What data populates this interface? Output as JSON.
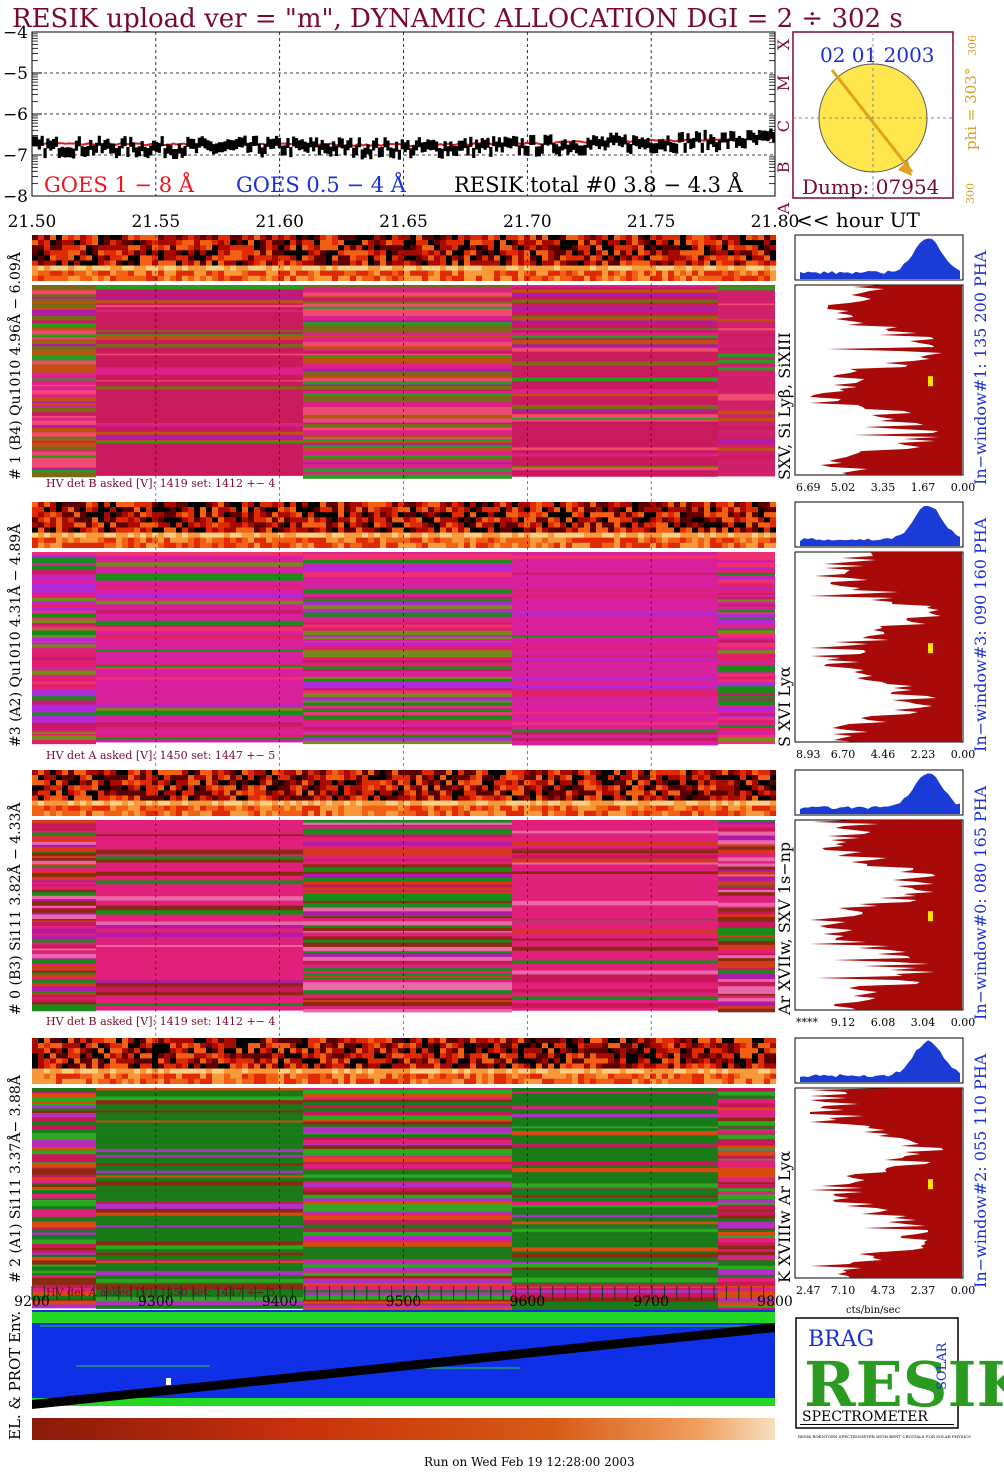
{
  "title": "RESIK upload ver = \"m\", DYNAMIC ALLOCATION  DGI =   2 ÷ 302 s",
  "colors": {
    "title": "#7a0a2a",
    "goes_long": "#e8141e",
    "goes_short": "#1a2fd6",
    "resik_total": "#000000",
    "spectrum": "#a80a0a",
    "profile": "#1a3bd6",
    "marker": "#ffe000",
    "sun": "#ffe64d",
    "sun_label": "#1a2fd6",
    "phi": "#d6a020",
    "env_bg": "#1030e8",
    "env_band": "#22d822",
    "window_label": "#1a2fd6",
    "hv_label": "#7a0a2a"
  },
  "top_panel": {
    "y_ticks": [
      "−4",
      "−5",
      "−6",
      "−7",
      "−8"
    ],
    "x_ticks": [
      "21.50",
      "21.55",
      "21.60",
      "21.65",
      "21.70",
      "21.75",
      "21.80"
    ],
    "x_unit": "<< hour UT",
    "goes_classes": [
      "X",
      "M",
      "C",
      "B",
      "A"
    ],
    "legend": {
      "goes_long": "GOES 1 − 8 Å",
      "goes_short": "GOES 0.5 − 4 Å",
      "resik_total": "RESIK total #0  3.8 − 4.3 Å"
    }
  },
  "chart_data": {
    "type": "line",
    "title": "RESIK upload ver = \"m\", DYNAMIC ALLOCATION  DGI =   2 ÷ 302 s",
    "xlabel": "hour UT",
    "xlim": [
      21.5,
      21.8
    ],
    "ylim": [
      -8,
      -4
    ],
    "series": [
      {
        "name": "GOES 1 − 8 Å",
        "x": [
          21.5,
          21.55,
          21.6,
          21.65,
          21.7,
          21.75,
          21.8
        ],
        "y": [
          -6.72,
          -6.75,
          -6.73,
          -6.76,
          -6.72,
          -6.66,
          -6.6
        ]
      },
      {
        "name": "RESIK total #0  3.8 − 4.3 Å",
        "x": [
          21.5,
          21.55,
          21.6,
          21.65,
          21.7,
          21.75,
          21.8
        ],
        "y": [
          -6.8,
          -6.82,
          -6.8,
          -6.84,
          -6.78,
          -6.7,
          -6.62
        ]
      }
    ]
  },
  "sun_box": {
    "date": "02 01 2003",
    "dump": "Dump: 07954",
    "phi": "phi = 303°",
    "phi_top": "306",
    "phi_bottom": "300"
  },
  "channels": [
    {
      "id": "ch1",
      "label": "# 1 (B4) Qu1010 4.96Å − 6.09Å",
      "lines": "SXV, Si Lyβ, SiXIII",
      "hv": "HV det B asked [V]:  1419 set:  1412 +−    4",
      "window": "In−window#1:  135 200 PHA",
      "ticks": [
        "6.69",
        "5.02",
        "3.35",
        "1.67",
        "0.00"
      ]
    },
    {
      "id": "ch3",
      "label": "#3 (A2) Qu1010  4.31Å − 4.89Å",
      "lines": "S XVI Lyα",
      "hv": "HV det A asked [V]:  1450 set:  1447 +−    5",
      "window": "In−window#3:  090 160 PHA",
      "ticks": [
        "8.93",
        "6.70",
        "4.46",
        "2.23",
        "0.00"
      ]
    },
    {
      "id": "ch0",
      "label": "# 0 (B3) Si111  3.82Å − 4.33Å",
      "lines": "Ar XVIIw, SXV 1s−np",
      "hv": "HV det B asked [V]:  1419 set:  1412 +−    4",
      "window": "In−window#0:  080 165 PHA",
      "ticks": [
        "****",
        "9.12",
        "6.08",
        "3.04",
        "0.00"
      ]
    },
    {
      "id": "ch2",
      "label": "# 2 (A1) Si111  3.37Å−  3.88Å",
      "lines": "K XVIIIw  Ar Lyα",
      "hv": "HV det A asked [V]:  1450 set:  1447 +−    5",
      "window": "In−window#2:  055 110 PHA",
      "ticks": [
        "2.47",
        "7.10",
        "4.73",
        "2.37",
        "0.00"
      ]
    }
  ],
  "bottom": {
    "x_ticks": [
      "9200",
      "9300",
      "9400",
      "9500",
      "9600",
      "9700",
      "9800"
    ],
    "env_label": "EL. & PROT Env.",
    "units": "cts/bin/sec"
  },
  "logo": {
    "letters": "RESIK",
    "small_top": "BRAG",
    "small_side": "SOLAR",
    "caption": "SPECTROMETER",
    "fine_print": "RESIK ROENTGEN SPECTROMETER WITH BENT CRYSTALS FOR SOLAR PHYSICS"
  },
  "footer": "Run on Wed Feb 19 12:28:00 2003"
}
